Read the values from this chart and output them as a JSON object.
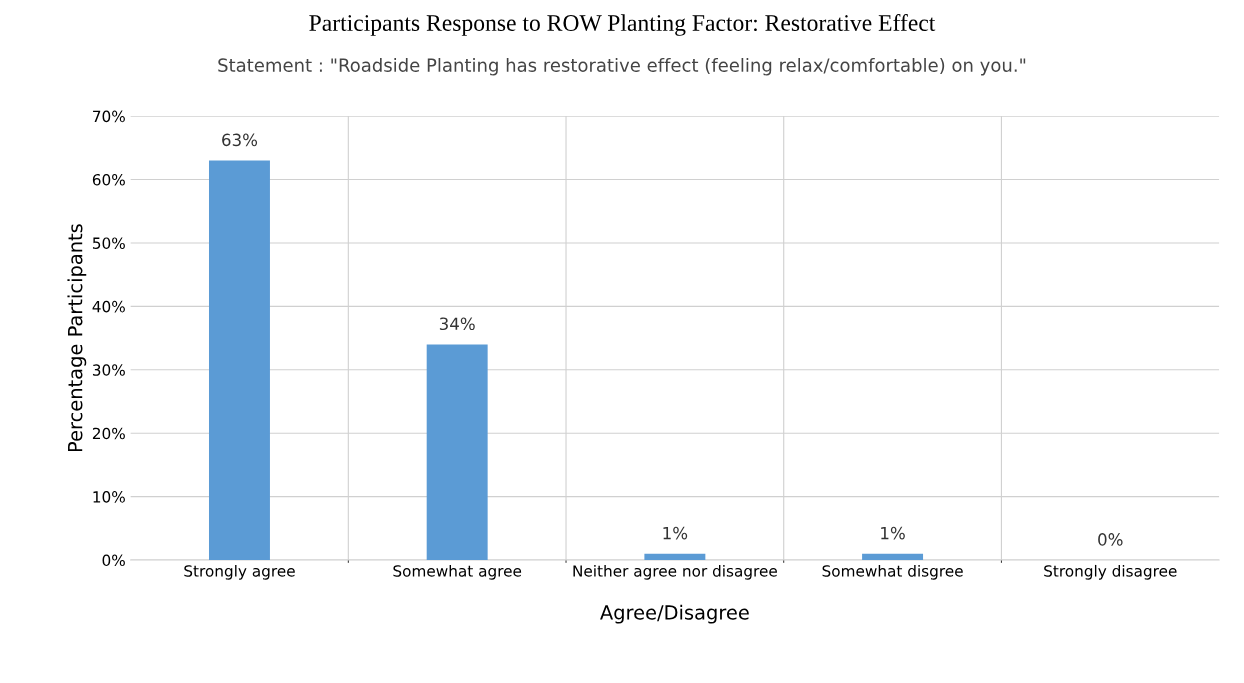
{
  "chart_data": {
    "type": "bar",
    "title": "Participants Response to ROW Planting Factor: Restorative Effect",
    "subtitle": "Statement : \"Roadside Planting has restorative effect (feeling relax/comfortable) on you.\"",
    "xlabel": "Agree/Disagree",
    "ylabel": "Percentage Participants",
    "categories": [
      "Strongly agree",
      "Somewhat agree",
      "Neither agree nor disagree",
      "Somewhat disgree",
      "Strongly disagree"
    ],
    "values": [
      63,
      34,
      1,
      1,
      0
    ],
    "color": "#5b9bd5",
    "value_labels": [
      "63%",
      "34%",
      "1%",
      "1%",
      "0%"
    ],
    "ylim": [
      0,
      70
    ],
    "yticks": [
      {
        "value": 0,
        "label": "0%"
      },
      {
        "value": 10,
        "label": "10%"
      },
      {
        "value": 20,
        "label": "20%"
      },
      {
        "value": 30,
        "label": "30%"
      },
      {
        "value": 40,
        "label": "40%"
      },
      {
        "value": 50,
        "label": "50%"
      },
      {
        "value": 60,
        "label": "60%"
      },
      {
        "value": 70,
        "label": "70%"
      }
    ],
    "grid": true,
    "legend": false
  }
}
